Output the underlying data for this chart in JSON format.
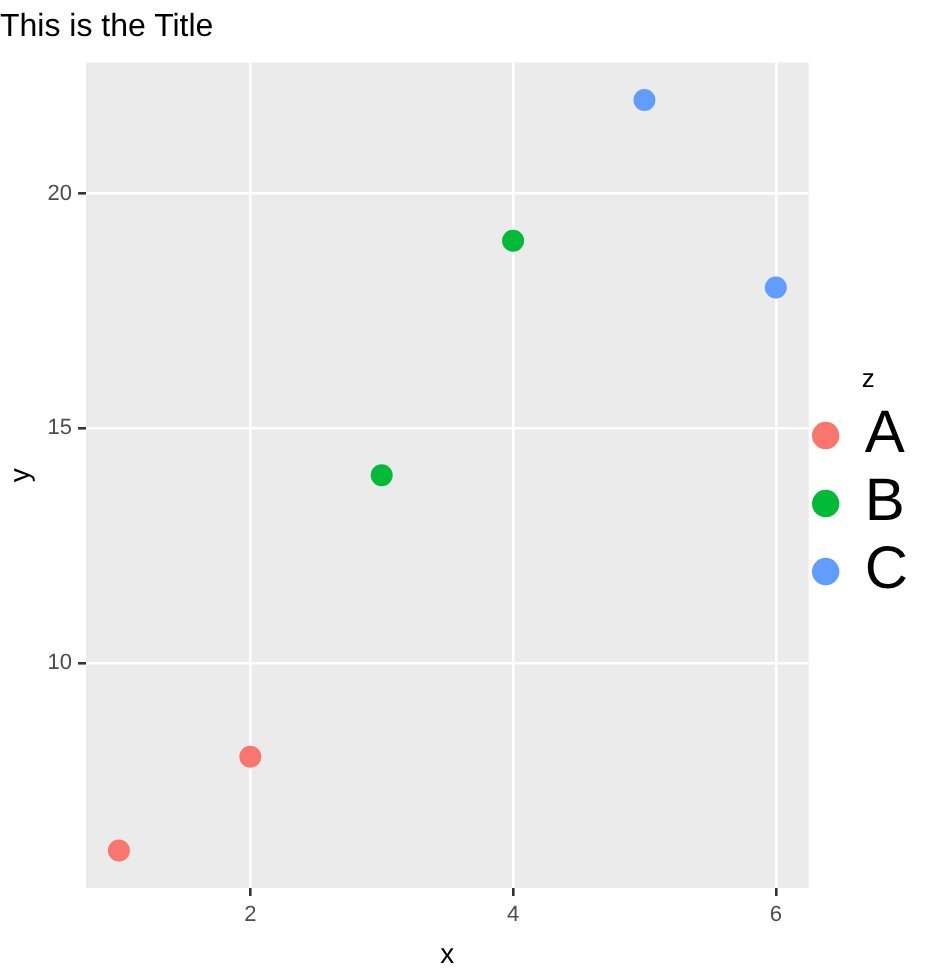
{
  "chart_data": {
    "type": "scatter",
    "title": "This is the Title",
    "xlabel": "x",
    "ylabel": "y",
    "legend_title": "z",
    "legend": "right",
    "grid": true,
    "marker": "circle",
    "xlim": [
      0.75,
      6.25
    ],
    "xticks": [
      2,
      4,
      6
    ],
    "ylim": [
      5.2,
      22.8
    ],
    "yticks": [
      10,
      15,
      20
    ],
    "series": [
      {
        "name": "A",
        "color": "#f8766d",
        "x": [
          1,
          2
        ],
        "values": [
          6,
          8
        ]
      },
      {
        "name": "B",
        "color": "#00ba38",
        "x": [
          3,
          4
        ],
        "values": [
          14,
          19
        ]
      },
      {
        "name": "C",
        "color": "#619cff",
        "x": [
          5,
          6
        ],
        "values": [
          22,
          18
        ]
      }
    ]
  }
}
